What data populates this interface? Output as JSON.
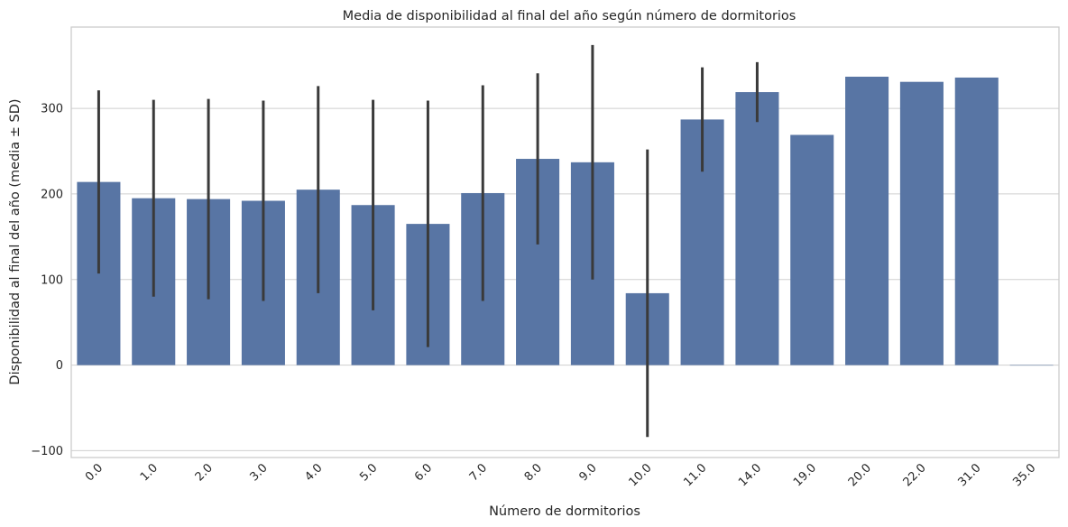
{
  "chart_data": {
    "type": "bar",
    "title": "Media de disponibilidad al final del año según número de dormitorios",
    "xlabel": "Número de dormitorios",
    "ylabel": "Disponibilidad al final del año (media ± SD)",
    "categories": [
      "0.0",
      "1.0",
      "2.0",
      "3.0",
      "4.0",
      "5.0",
      "6.0",
      "7.0",
      "8.0",
      "9.0",
      "10.0",
      "11.0",
      "14.0",
      "19.0",
      "20.0",
      "22.0",
      "31.0",
      "35.0"
    ],
    "values": [
      214,
      195,
      194,
      192,
      205,
      187,
      165,
      201,
      241,
      237,
      84,
      287,
      319,
      269,
      337,
      331,
      336,
      0
    ],
    "sd": [
      107,
      115,
      117,
      117,
      121,
      123,
      144,
      126,
      100,
      137,
      168,
      61,
      35,
      null,
      null,
      null,
      null,
      null
    ],
    "ylim": [
      -108,
      395
    ],
    "yticks": [
      -100,
      0,
      100,
      200,
      300
    ],
    "ytick_labels": [
      "−100",
      "0",
      "100",
      "200",
      "300"
    ],
    "grid": "horizontal",
    "colors": {
      "bar": "#5875a4",
      "errorbar": "#3a3a3a",
      "grid": "#cfcfcf",
      "spine": "#cccccc"
    }
  }
}
